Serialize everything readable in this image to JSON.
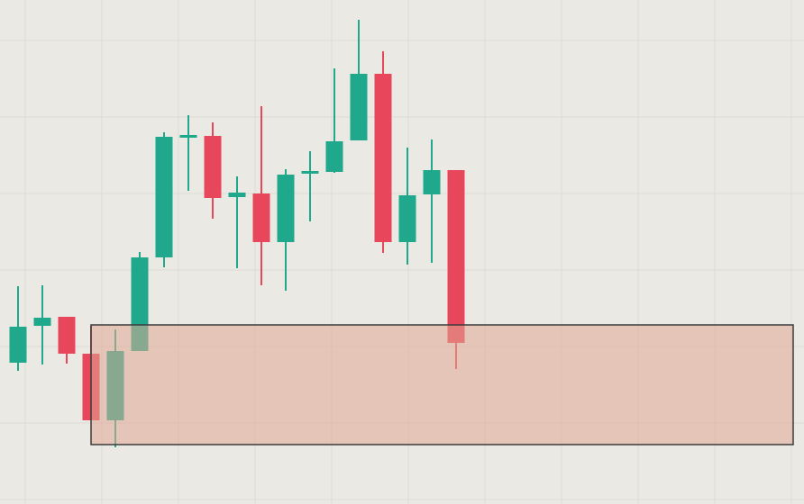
{
  "chart_data": {
    "type": "candlestick",
    "categories": [
      null,
      null,
      null,
      null,
      null,
      null,
      null,
      null,
      null,
      null,
      null,
      null,
      null,
      null,
      null,
      null,
      null,
      null,
      null
    ],
    "open": [
      157,
      198,
      208,
      167,
      93,
      170,
      274,
      410,
      409,
      341,
      345,
      291,
      367,
      369,
      404,
      478,
      291,
      344,
      371
    ],
    "high": [
      242,
      243,
      208,
      198,
      194,
      280,
      413,
      432,
      424,
      364,
      442,
      372,
      392,
      484,
      538,
      503,
      396,
      405,
      371
    ],
    "low": [
      148,
      155,
      156,
      93,
      63,
      170,
      263,
      348,
      317,
      262,
      243,
      237,
      314,
      368,
      404,
      279,
      266,
      268,
      150
    ],
    "close": [
      197,
      207,
      167,
      93,
      170,
      274,
      408,
      410,
      340,
      346,
      291,
      366,
      370,
      403,
      478,
      291,
      343,
      371,
      179
    ],
    "up_color": "#1fa88c",
    "down_color": "#e8465a",
    "ylim": [
      0,
      560
    ],
    "zone": {
      "top": 199,
      "bottom": 66,
      "start_index": 3,
      "color": "#e0a894"
    }
  }
}
